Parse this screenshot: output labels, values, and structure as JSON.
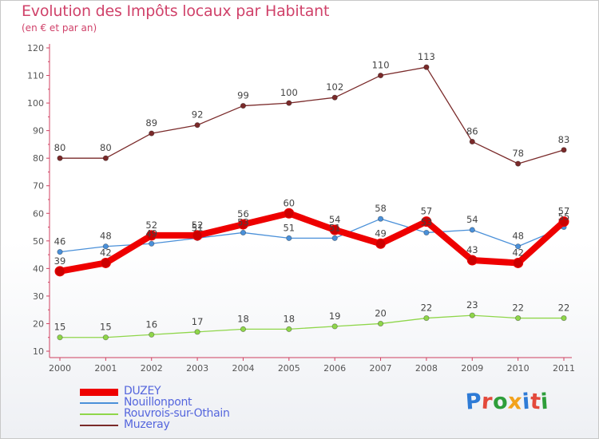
{
  "header": {
    "title": "Evolution des Impôts locaux par Habitant",
    "subtitle": "(en € et par an)"
  },
  "logo": {
    "text": "Proxiti",
    "colors": [
      "#2e7bd6",
      "#e3493b",
      "#2e9e3a",
      "#f2a21c",
      "#2e7bd6",
      "#e3493b",
      "#2e9e3a"
    ]
  },
  "chart_data": {
    "type": "line",
    "title": "Evolution des Impôts locaux par Habitant",
    "subtitle": "(en € et par an)",
    "xlabel": "",
    "ylabel": "",
    "x": [
      "2000",
      "2001",
      "2002",
      "2003",
      "2004",
      "2005",
      "2006",
      "2007",
      "2008",
      "2009",
      "2010",
      "2011"
    ],
    "ylim": [
      10,
      120
    ],
    "yticks": [
      10,
      20,
      30,
      40,
      50,
      60,
      70,
      80,
      90,
      100,
      110,
      120
    ],
    "grid": false,
    "legend_position": "bottom-left",
    "series": [
      {
        "name": "DUZEY",
        "color": "#ee0000",
        "style": "bold",
        "values": [
          39,
          42,
          52,
          52,
          56,
          60,
          54,
          49,
          57,
          43,
          42,
          57
        ],
        "labels": [
          "39",
          "42",
          "52",
          "52",
          "56",
          "60",
          "54",
          "49",
          "57",
          "43",
          "42",
          "57"
        ]
      },
      {
        "name": "Nouillonpont",
        "color": "#4a90d9",
        "values": [
          46,
          48,
          49,
          51,
          53,
          51,
          51,
          58,
          53,
          54,
          48,
          55
        ],
        "labels": [
          "46",
          "48",
          "49",
          "51",
          "53",
          "51",
          "51",
          "58",
          "53",
          "54",
          "48",
          "55"
        ]
      },
      {
        "name": "Rouvrois-sur-Othain",
        "color": "#8fd64a",
        "values": [
          15,
          15,
          16,
          17,
          18,
          18,
          19,
          20,
          22,
          23,
          22,
          22
        ],
        "labels": [
          "15",
          "15",
          "16",
          "17",
          "18",
          "18",
          "19",
          "20",
          "22",
          "23",
          "22",
          "22"
        ]
      },
      {
        "name": "Muzeray",
        "color": "#7a2a2a",
        "values": [
          80,
          80,
          89,
          92,
          99,
          100,
          102,
          110,
          113,
          86,
          78,
          83
        ],
        "labels": [
          "80",
          "80",
          "89",
          "92",
          "99",
          "100",
          "102",
          "110",
          "113",
          "86",
          "78",
          "83"
        ]
      }
    ]
  }
}
